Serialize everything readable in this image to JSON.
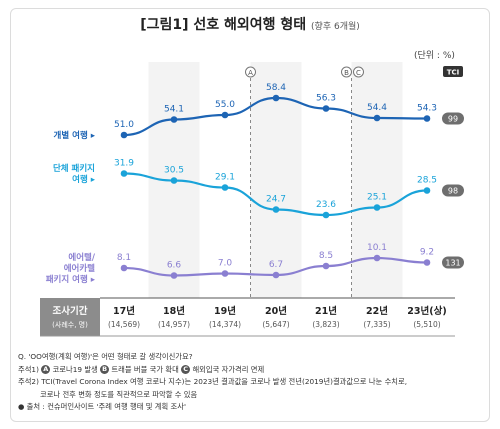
{
  "title": "[그림1] 선호 해외여행 형태",
  "title_sub": "(향후 6개월)",
  "unit": "(단위 : %)",
  "tci_label": "TCI",
  "colors": {
    "individual": "#1d64b4",
    "group": "#1aa3d9",
    "airtel": "#8a7fd1",
    "tci": "#6e6e6e",
    "year_row": "#8c8c8c"
  },
  "period_header": "조사기간",
  "period_header_sub": "(사례수, 명)",
  "markers": [
    {
      "letter": "A",
      "after": "19년"
    },
    {
      "letter": "B",
      "after": "21년"
    },
    {
      "letter": "C",
      "after": "21년"
    }
  ],
  "chart_data": {
    "type": "line",
    "categories": [
      "17년",
      "18년",
      "19년",
      "20년",
      "21년",
      "22년",
      "23년(상)"
    ],
    "sample_sizes": [
      "(14,569)",
      "(14,957)",
      "(14,374)",
      "(5,647)",
      "(3,823)",
      "(7,335)",
      "(5,510)"
    ],
    "series": [
      {
        "name": "개별 여행",
        "name_lines": [
          "개별 여행 ▸"
        ],
        "key": "individual",
        "values": [
          51.0,
          54.1,
          55.0,
          58.4,
          56.3,
          54.4,
          54.3
        ],
        "tci": "99"
      },
      {
        "name": "단체 패키지 여행",
        "name_lines": [
          "단체 패키지",
          "여행 ▸"
        ],
        "key": "group",
        "values": [
          31.9,
          30.5,
          29.1,
          24.7,
          23.6,
          25.1,
          28.5
        ],
        "tci": "98"
      },
      {
        "name": "에어텔/에어카텔 패키지 여행",
        "name_lines": [
          "에어텔/",
          "에어카텔",
          "패키지 여행 ▸"
        ],
        "key": "airtel",
        "values": [
          8.1,
          6.6,
          7.0,
          6.7,
          8.5,
          10.1,
          9.2
        ],
        "tci": "131"
      }
    ]
  },
  "notes": {
    "q": "Q. 'OO여행(계획 여행)'은 어떤 형태로 갈 생각이신가요?",
    "note1_prefix": "주석1)",
    "note1_a": "코로나19 발생",
    "note1_b": "트래블 버블 국가 확대",
    "note1_c": "해외입국 자가격리 면제",
    "note2": "주석2) TCI(Travel Corona Index 여행 코로나 지수)는 2023년 결과값을 코로나 발생 전년(2019년)결과값으로 나눈 수치로,",
    "note2b": "코로나 전후 변화 정도를 직관적으로 파악할 수 있음",
    "source": "● 출처 : 컨슈머인사이트 '주례 여행 행태 및 계획 조사'"
  }
}
